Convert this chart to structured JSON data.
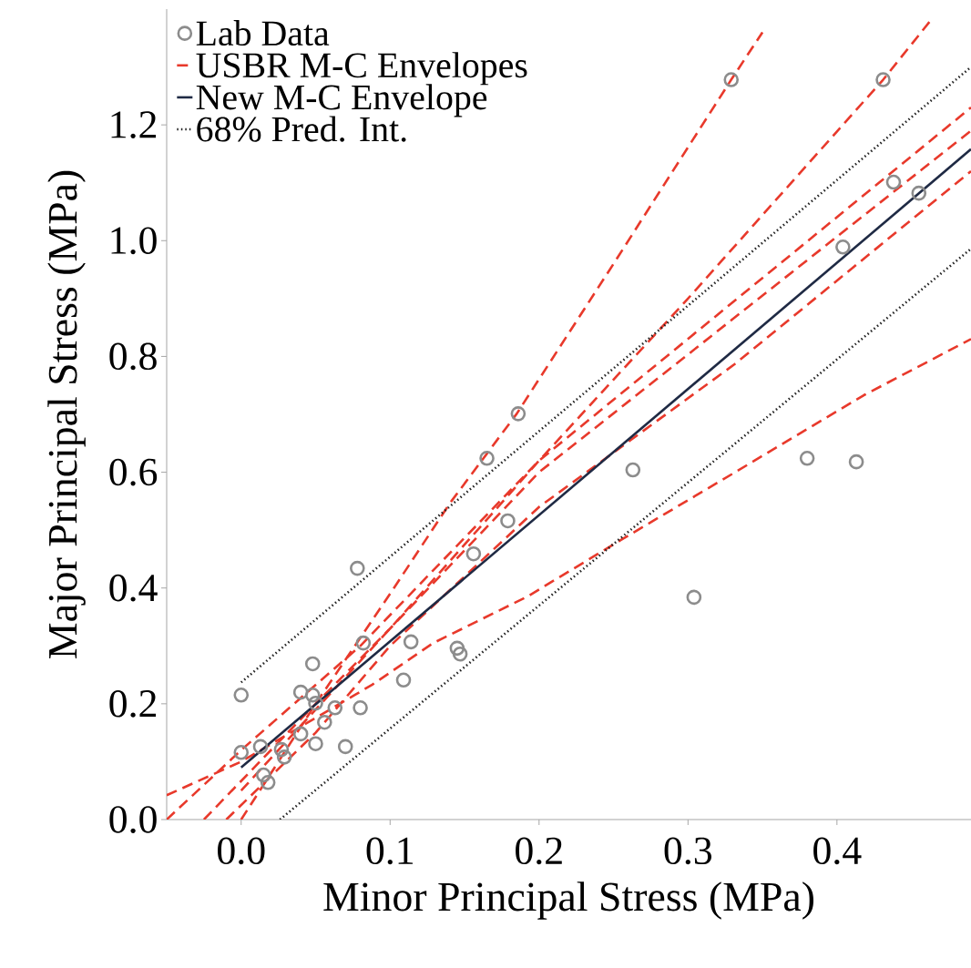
{
  "chart_data": {
    "type": "scatter",
    "xlabel": "Minor Principal Stress (MPa)",
    "ylabel": "Major Principal Stress (MPa)",
    "xlim": [
      -0.05,
      0.49
    ],
    "ylim": [
      0,
      1.4
    ],
    "xticks": [
      {
        "value": 0,
        "label": "0.0"
      },
      0.1,
      0.2,
      0.3,
      0.4
    ],
    "yticks": [
      {
        "value": 0,
        "label": "0.0"
      },
      0.2,
      0.4,
      0.6,
      0.8,
      {
        "value": 1.0,
        "label": "1.0"
      },
      1.2
    ],
    "legend": "top left",
    "series": [
      {
        "name": "Lab Data",
        "color": "#8c8c8c",
        "marker": "circle",
        "x": [
          0.0,
          0.013,
          0.027,
          0.029,
          0.015,
          0.018,
          0.04,
          0.05,
          0.056,
          0.063,
          0.07,
          0.08,
          0.04,
          0.048,
          0.05,
          0.048,
          0.0,
          0.082,
          0.114,
          0.109,
          0.145,
          0.147,
          0.078,
          0.156,
          0.179,
          0.263,
          0.304,
          0.38,
          0.413,
          0.165,
          0.186,
          0.329,
          0.431,
          0.438,
          0.455,
          0.404
        ],
        "values": [
          0.116,
          0.126,
          0.121,
          0.108,
          0.077,
          0.064,
          0.148,
          0.131,
          0.168,
          0.193,
          0.126,
          0.193,
          0.22,
          0.215,
          0.201,
          0.269,
          0.215,
          0.305,
          0.307,
          0.241,
          0.296,
          0.286,
          0.434,
          0.459,
          0.516,
          0.604,
          0.384,
          0.624,
          0.618,
          0.624,
          0.701,
          1.278,
          1.278,
          1.101,
          1.082,
          0.989
        ]
      },
      {
        "name": "USBR M-C Envelopes",
        "type": "line",
        "line_style": "dashed",
        "color": "#e8392b",
        "x": [
          0.0,
          0.05,
          0.1,
          0.14,
          0.185,
          0.25,
          0.329,
          0.35
        ],
        "values": [
          0.0,
          0.2,
          0.39,
          0.546,
          0.701,
          0.96,
          1.278,
          1.36
        ]
      },
      {
        "type": "line",
        "line_style": "dashed",
        "color": "#e8392b",
        "x": [
          0.0,
          0.1,
          0.2,
          0.3,
          0.431,
          0.464
        ],
        "values": [
          0.05,
          0.33,
          0.62,
          0.9,
          1.278,
          1.384
        ]
      },
      {
        "type": "line",
        "line_style": "dashed",
        "color": "#e8392b",
        "x": [
          -0.05,
          0.0,
          0.08,
          0.2,
          0.49
        ],
        "values": [
          0.0,
          0.12,
          0.3,
          0.62,
          1.23
        ]
      },
      {
        "type": "line",
        "line_style": "dashed",
        "color": "#e8392b",
        "x": [
          -0.025,
          0.05,
          0.1,
          0.2,
          0.49
        ],
        "values": [
          0.0,
          0.2,
          0.33,
          0.6,
          1.19
        ]
      },
      {
        "type": "line",
        "line_style": "dashed",
        "color": "#e8392b",
        "x": [
          -0.01,
          0.05,
          0.1,
          0.2,
          0.331,
          0.49
        ],
        "values": [
          0.0,
          0.15,
          0.3,
          0.54,
          0.786,
          1.12
        ]
      },
      {
        "type": "line",
        "line_style": "dashed",
        "color": "#e8392b",
        "x": [
          -0.05,
          0.0,
          0.088,
          0.129,
          0.192,
          0.255,
          0.331,
          0.418,
          0.49
        ],
        "values": [
          0.042,
          0.1,
          0.233,
          0.305,
          0.385,
          0.483,
          0.599,
          0.733,
          0.83
        ]
      },
      {
        "name": "New M-C Envelope",
        "type": "line",
        "line_style": "solid",
        "color": "#1f2a44",
        "x": [
          0.0,
          0.49
        ],
        "values": [
          0.09,
          1.158
        ]
      },
      {
        "name": "68% Pred. Int.",
        "type": "line",
        "line_style": "dotted",
        "color": "#222222",
        "x": [
          0.0,
          0.49
        ],
        "values": [
          0.237,
          1.3
        ]
      },
      {
        "type": "line",
        "line_style": "dotted",
        "color": "#222222",
        "x": [
          0.026,
          0.49
        ],
        "values": [
          0.0,
          0.986
        ]
      }
    ]
  }
}
